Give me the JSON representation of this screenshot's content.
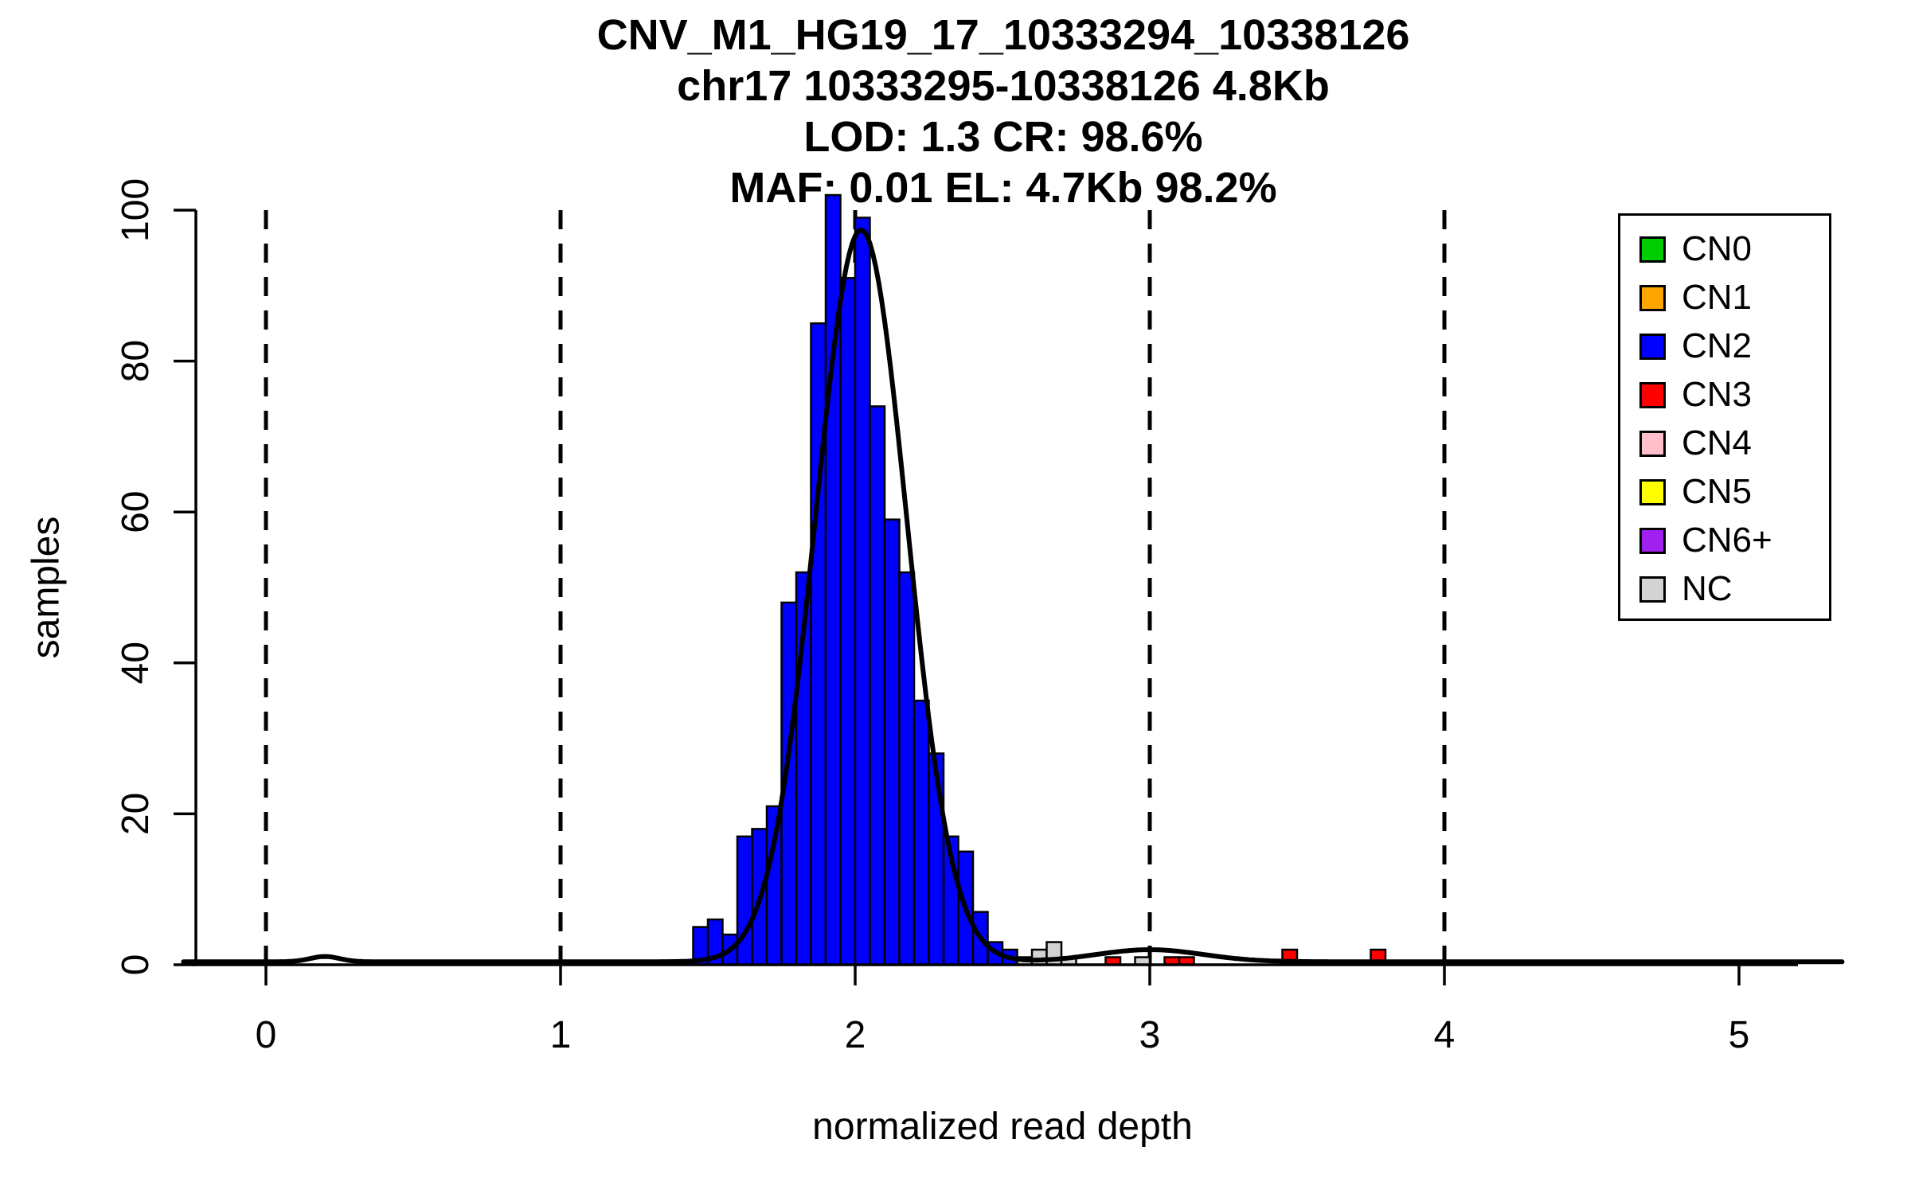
{
  "chart_data": {
    "type": "bar",
    "variant": "histogram-with-density-curve",
    "title_lines": [
      "CNV_M1_HG19_17_10333294_10338126",
      "chr17 10333295-10338126 4.8Kb",
      "LOD: 1.3 CR: 98.6%",
      "MAF: 0.01 EL: 4.7Kb 98.2%"
    ],
    "xlabel": "normalized read depth",
    "ylabel": "samples",
    "xlim": [
      -0.25,
      5.2
    ],
    "ylim": [
      0,
      105
    ],
    "x_ticks": [
      0,
      1,
      2,
      3,
      4,
      5
    ],
    "y_ticks": [
      0,
      20,
      40,
      60,
      80,
      100
    ],
    "dashed_vlines": [
      0,
      1,
      2,
      3,
      4
    ],
    "grid": "dashed-vertical-only",
    "bin_width": 0.05,
    "bars": [
      {
        "x": 1.45,
        "h": 5,
        "cn": "CN2"
      },
      {
        "x": 1.5,
        "h": 6,
        "cn": "CN2"
      },
      {
        "x": 1.55,
        "h": 4,
        "cn": "CN2"
      },
      {
        "x": 1.6,
        "h": 17,
        "cn": "CN2"
      },
      {
        "x": 1.65,
        "h": 18,
        "cn": "CN2"
      },
      {
        "x": 1.7,
        "h": 21,
        "cn": "CN2"
      },
      {
        "x": 1.75,
        "h": 48,
        "cn": "CN2"
      },
      {
        "x": 1.8,
        "h": 52,
        "cn": "CN2"
      },
      {
        "x": 1.85,
        "h": 85,
        "cn": "CN2"
      },
      {
        "x": 1.9,
        "h": 102,
        "cn": "CN2"
      },
      {
        "x": 1.95,
        "h": 91,
        "cn": "CN2"
      },
      {
        "x": 2.0,
        "h": 99,
        "cn": "CN2"
      },
      {
        "x": 2.05,
        "h": 74,
        "cn": "CN2"
      },
      {
        "x": 2.1,
        "h": 59,
        "cn": "CN2"
      },
      {
        "x": 2.15,
        "h": 52,
        "cn": "CN2"
      },
      {
        "x": 2.2,
        "h": 35,
        "cn": "CN2"
      },
      {
        "x": 2.25,
        "h": 28,
        "cn": "CN2"
      },
      {
        "x": 2.3,
        "h": 17,
        "cn": "CN2"
      },
      {
        "x": 2.35,
        "h": 15,
        "cn": "CN2"
      },
      {
        "x": 2.4,
        "h": 7,
        "cn": "CN2"
      },
      {
        "x": 2.45,
        "h": 3,
        "cn": "CN2"
      },
      {
        "x": 2.5,
        "h": 2,
        "cn": "CN2"
      },
      {
        "x": 2.55,
        "h": 1,
        "cn": "NC"
      },
      {
        "x": 2.6,
        "h": 2,
        "cn": "NC"
      },
      {
        "x": 2.65,
        "h": 3,
        "cn": "NC"
      },
      {
        "x": 2.7,
        "h": 1,
        "cn": "NC"
      },
      {
        "x": 2.85,
        "h": 1,
        "cn": "CN3"
      },
      {
        "x": 2.95,
        "h": 1,
        "cn": "NC"
      },
      {
        "x": 3.05,
        "h": 1,
        "cn": "CN3"
      },
      {
        "x": 3.1,
        "h": 1,
        "cn": "CN3"
      },
      {
        "x": 3.45,
        "h": 2,
        "cn": "CN3"
      },
      {
        "x": 3.75,
        "h": 2,
        "cn": "CN3"
      }
    ],
    "colors": {
      "CN0": "#00CD00",
      "CN1": "#FFA500",
      "CN2": "#0000FF",
      "CN3": "#FF0000",
      "CN4": "#FFC0CB",
      "CN5": "#FFFF00",
      "CN6+": "#A020F0",
      "NC": "#D3D3D3",
      "curve": "#000000",
      "bar_border": "#000000"
    },
    "legend": {
      "position": "top-right",
      "entries": [
        {
          "label": "CN0"
        },
        {
          "label": "CN1"
        },
        {
          "label": "CN2"
        },
        {
          "label": "CN3"
        },
        {
          "label": "CN4"
        },
        {
          "label": "CN5"
        },
        {
          "label": "CN6+"
        },
        {
          "label": "NC"
        }
      ]
    },
    "density_curve": {
      "baseline": 0.4,
      "components": [
        {
          "mu": 2.02,
          "sigma": 0.155,
          "amp": 97
        },
        {
          "mu": 3.0,
          "sigma": 0.18,
          "amp": 1.6
        },
        {
          "mu": 0.2,
          "sigma": 0.05,
          "amp": 0.7
        }
      ]
    }
  }
}
